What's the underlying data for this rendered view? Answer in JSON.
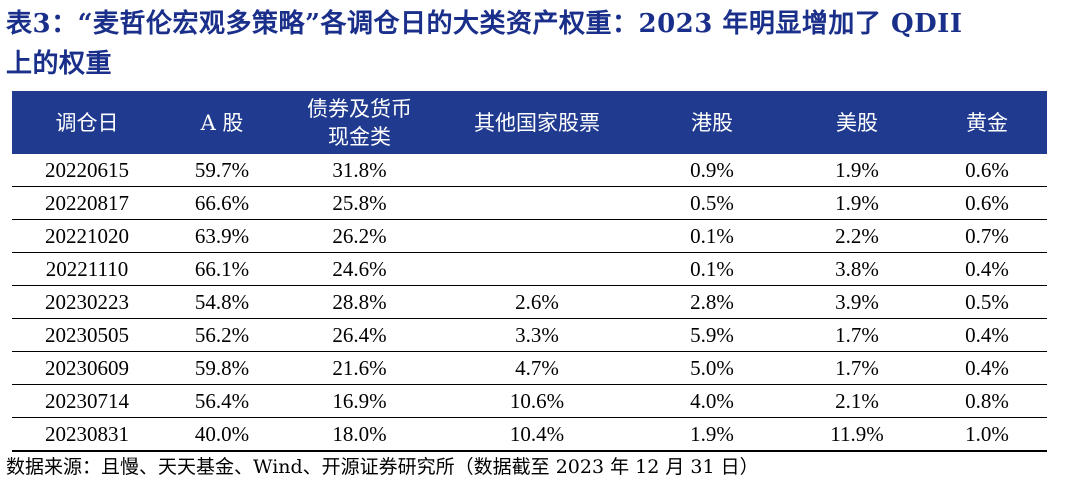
{
  "title": {
    "line1": "表3：“麦哲伦宏观多策略”各调仓日的大类资产权重：2023 年明显增加了 QDII",
    "line2": "上的权重"
  },
  "table": {
    "headers": [
      "调仓日",
      "A 股",
      "债券及货币现金类",
      "其他国家股票",
      "港股",
      "美股",
      "黄金"
    ],
    "header_col3_line1": "债券及货币",
    "header_col3_line2": "现金类",
    "rows": [
      [
        "20220615",
        "59.7%",
        "31.8%",
        "",
        "0.9%",
        "1.9%",
        "0.6%"
      ],
      [
        "20220817",
        "66.6%",
        "25.8%",
        "",
        "0.5%",
        "1.9%",
        "0.6%"
      ],
      [
        "20221020",
        "63.9%",
        "26.2%",
        "",
        "0.1%",
        "2.2%",
        "0.7%"
      ],
      [
        "20221110",
        "66.1%",
        "24.6%",
        "",
        "0.1%",
        "3.8%",
        "0.4%"
      ],
      [
        "20230223",
        "54.8%",
        "28.8%",
        "2.6%",
        "2.8%",
        "3.9%",
        "0.5%"
      ],
      [
        "20230505",
        "56.2%",
        "26.4%",
        "3.3%",
        "5.9%",
        "1.7%",
        "0.4%"
      ],
      [
        "20230609",
        "59.8%",
        "21.6%",
        "4.7%",
        "5.0%",
        "1.7%",
        "0.4%"
      ],
      [
        "20230714",
        "56.4%",
        "16.9%",
        "10.6%",
        "4.0%",
        "2.1%",
        "0.8%"
      ],
      [
        "20230831",
        "40.0%",
        "18.0%",
        "10.4%",
        "1.9%",
        "11.9%",
        "1.0%"
      ]
    ]
  },
  "source": "数据来源：且慢、天天基金、Wind、开源证券研究所（数据截至 2023 年 12 月 31 日）",
  "colors": {
    "header_bg": "#1f3a8f",
    "title": "#1a2f8a"
  }
}
